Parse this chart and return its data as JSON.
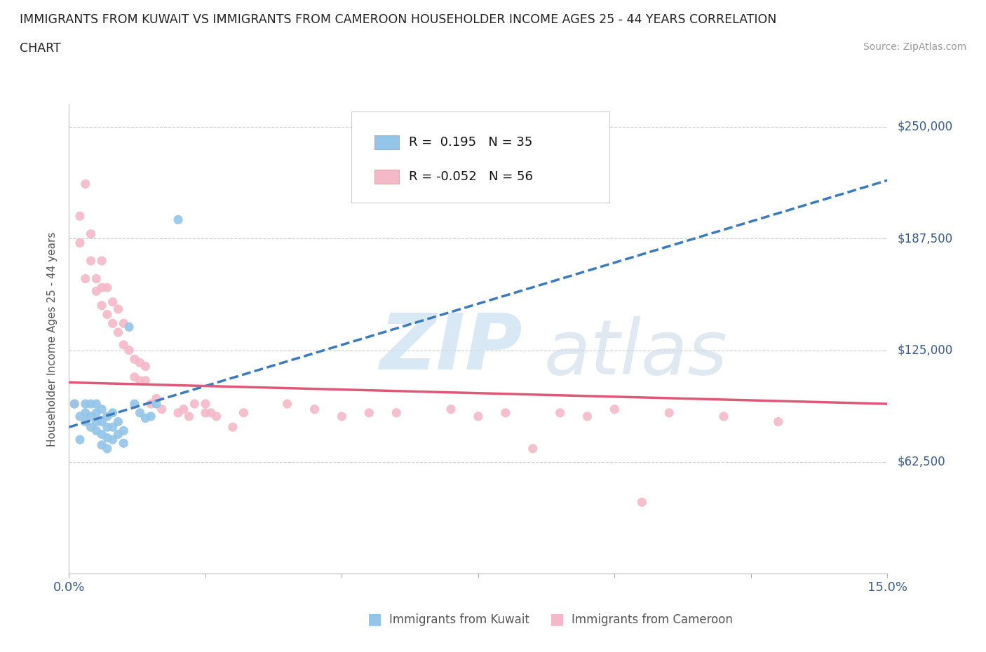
{
  "title_line1": "IMMIGRANTS FROM KUWAIT VS IMMIGRANTS FROM CAMEROON HOUSEHOLDER INCOME AGES 25 - 44 YEARS CORRELATION",
  "title_line2": "CHART",
  "source": "Source: ZipAtlas.com",
  "ylabel": "Householder Income Ages 25 - 44 years",
  "xlim": [
    0.0,
    0.15
  ],
  "ylim": [
    0,
    262500
  ],
  "yticks": [
    0,
    62500,
    125000,
    187500,
    250000
  ],
  "ytick_labels": [
    "",
    "$62,500",
    "$125,000",
    "$187,500",
    "$250,000"
  ],
  "xticks": [
    0.0,
    0.025,
    0.05,
    0.075,
    0.1,
    0.125,
    0.15
  ],
  "xtick_labels": [
    "0.0%",
    "",
    "",
    "",
    "",
    "",
    "15.0%"
  ],
  "kuwait_R": 0.195,
  "kuwait_N": 35,
  "cameroon_R": -0.052,
  "cameroon_N": 56,
  "kuwait_color": "#92c5e8",
  "cameroon_color": "#f5b8c8",
  "kuwait_line_color": "#3a7abf",
  "cameroon_line_color": "#e05878",
  "kuwait_x": [
    0.001,
    0.002,
    0.002,
    0.003,
    0.003,
    0.003,
    0.004,
    0.004,
    0.004,
    0.005,
    0.005,
    0.005,
    0.005,
    0.006,
    0.006,
    0.006,
    0.006,
    0.007,
    0.007,
    0.007,
    0.007,
    0.008,
    0.008,
    0.008,
    0.009,
    0.009,
    0.01,
    0.01,
    0.011,
    0.012,
    0.013,
    0.014,
    0.015,
    0.016,
    0.02
  ],
  "kuwait_y": [
    95000,
    75000,
    88000,
    90000,
    85000,
    95000,
    82000,
    88000,
    95000,
    80000,
    85000,
    90000,
    95000,
    72000,
    78000,
    85000,
    92000,
    70000,
    76000,
    82000,
    88000,
    75000,
    82000,
    90000,
    78000,
    85000,
    73000,
    80000,
    138000,
    95000,
    90000,
    87000,
    88000,
    95000,
    198000
  ],
  "cameroon_x": [
    0.001,
    0.002,
    0.002,
    0.003,
    0.003,
    0.004,
    0.004,
    0.005,
    0.005,
    0.006,
    0.006,
    0.006,
    0.007,
    0.007,
    0.008,
    0.008,
    0.009,
    0.009,
    0.01,
    0.01,
    0.011,
    0.012,
    0.012,
    0.013,
    0.013,
    0.014,
    0.014,
    0.015,
    0.016,
    0.017,
    0.02,
    0.021,
    0.022,
    0.023,
    0.025,
    0.025,
    0.026,
    0.027,
    0.03,
    0.032,
    0.04,
    0.05,
    0.06,
    0.07,
    0.075,
    0.08,
    0.09,
    0.095,
    0.1,
    0.11,
    0.12,
    0.13,
    0.085,
    0.105,
    0.045,
    0.055
  ],
  "cameroon_y": [
    95000,
    185000,
    200000,
    218000,
    165000,
    175000,
    190000,
    158000,
    165000,
    150000,
    160000,
    175000,
    145000,
    160000,
    140000,
    152000,
    135000,
    148000,
    128000,
    140000,
    125000,
    110000,
    120000,
    108000,
    118000,
    108000,
    116000,
    95000,
    98000,
    92000,
    90000,
    92000,
    88000,
    95000,
    90000,
    95000,
    90000,
    88000,
    82000,
    90000,
    95000,
    88000,
    90000,
    92000,
    88000,
    90000,
    90000,
    88000,
    92000,
    90000,
    88000,
    85000,
    70000,
    40000,
    92000,
    90000
  ]
}
